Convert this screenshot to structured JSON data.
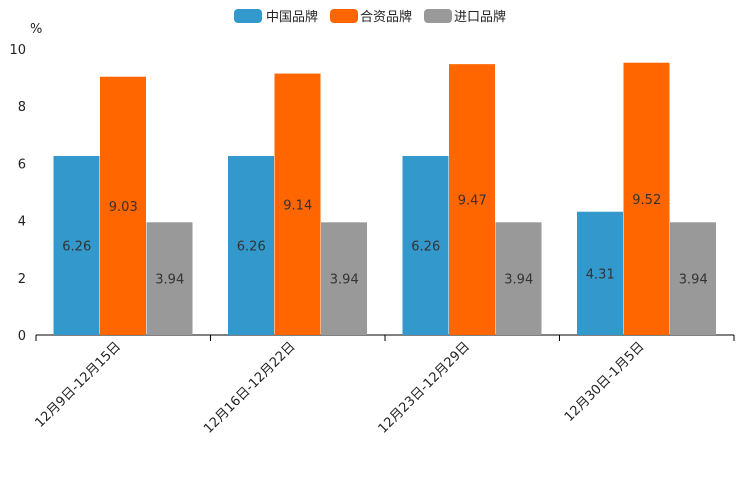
{
  "chart_data": {
    "type": "bar",
    "unit_label": "%",
    "categories": [
      "12月9日-12月15日",
      "12月16日-12月22日",
      "12月23日-12月29日",
      "12月30日-1月5日"
    ],
    "series": [
      {
        "name": "中国品牌",
        "color": "#3399cc",
        "values": [
          6.26,
          6.26,
          6.26,
          4.31
        ]
      },
      {
        "name": "合资品牌",
        "color": "#ff6600",
        "values": [
          9.03,
          9.14,
          9.47,
          9.52
        ]
      },
      {
        "name": "进口品牌",
        "color": "#999999",
        "values": [
          3.94,
          3.94,
          3.94,
          3.94
        ]
      }
    ],
    "data_labels": [
      [
        "6.26",
        "6.26",
        "6.26",
        "4.31"
      ],
      [
        "9.03",
        "9.14",
        "9.47",
        "9.52"
      ],
      [
        "3.94",
        "3.94",
        "3.94",
        "3.94"
      ]
    ],
    "ylim": [
      0,
      10
    ],
    "yticks": [
      0,
      2,
      4,
      6,
      8,
      10
    ],
    "legend_position": "top-center",
    "grid": false
  }
}
